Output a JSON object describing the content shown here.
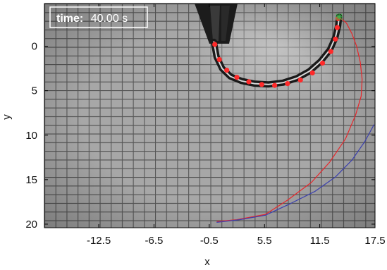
{
  "chart_data": {
    "type": "line",
    "title": "",
    "xlabel": "x",
    "ylabel": "y",
    "xlim": [
      -18.4,
      17.5
    ],
    "ylim": [
      20.4,
      -4.8
    ],
    "y_reversed": true,
    "x_ticks": [
      -12.5,
      -6.5,
      -0.5,
      5.5,
      11.5,
      17.5
    ],
    "x_tick_labels": [
      "-12.5",
      "-6.5",
      "-0.5",
      "5.5",
      "11.5",
      "17.5"
    ],
    "y_ticks": [
      0,
      5,
      10,
      15,
      20
    ],
    "y_tick_labels": [
      "0",
      "5",
      "10",
      "15",
      "20"
    ],
    "grid": false,
    "background": "grayscale photograph of a grid sheet with a curved rod",
    "annotation": {
      "time_key": "time:",
      "time_value": "40.00 s"
    },
    "series": [
      {
        "color": "#e8262a",
        "x": [
          13.6,
          14.4,
          15.0,
          15.5,
          15.9,
          16.1,
          16.0,
          15.4,
          14.3,
          12.6,
          10.6,
          8.0,
          5.6,
          2.5,
          0.3
        ],
        "y": [
          -3.3,
          -2.6,
          -1.4,
          0.0,
          1.8,
          3.7,
          5.6,
          7.7,
          10.4,
          13.0,
          15.3,
          17.3,
          18.9,
          19.5,
          19.7
        ]
      },
      {
        "color": "#3a3fae",
        "x": [
          17.4,
          16.4,
          15.0,
          13.2,
          11.0,
          8.3,
          5.6,
          2.8,
          0.3
        ],
        "y": [
          8.8,
          10.7,
          12.8,
          14.7,
          16.3,
          17.7,
          19.0,
          19.5,
          19.8
        ]
      }
    ],
    "markers": {
      "color": "#ff2a2a",
      "x": [
        0.1,
        0.6,
        1.4,
        2.5,
        3.8,
        5.2,
        6.6,
        8.0,
        9.4,
        10.7,
        11.8,
        12.7,
        13.2,
        13.4,
        13.5
      ],
      "y": [
        -0.2,
        1.5,
        2.7,
        3.5,
        4.0,
        4.3,
        4.4,
        4.2,
        3.8,
        3.0,
        1.9,
        0.6,
        -0.8,
        -2.1,
        -3.1
      ]
    },
    "rod": {
      "x": [
        0.0,
        0.3,
        0.9,
        1.8,
        3.0,
        4.4,
        5.9,
        7.5,
        9.0,
        10.4,
        11.6,
        12.6,
        13.2,
        13.5,
        13.6
      ],
      "y": [
        -0.5,
        1.2,
        2.5,
        3.4,
        3.9,
        4.2,
        4.3,
        4.1,
        3.6,
        2.8,
        1.7,
        0.4,
        -1.0,
        -2.3,
        -3.3
      ]
    },
    "endpoint_marker": {
      "x": 13.6,
      "y": -3.3,
      "color": "#3cb34a"
    }
  }
}
